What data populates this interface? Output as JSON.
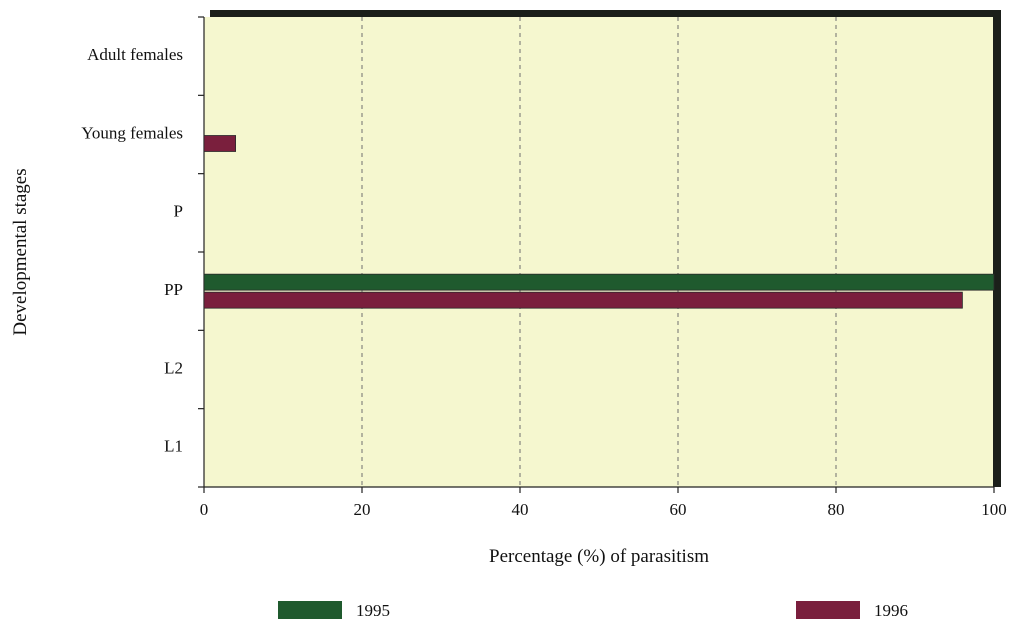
{
  "chart_data": {
    "type": "bar",
    "orientation": "horizontal",
    "title": "",
    "xlabel": "Percentage (%) of parasitism",
    "ylabel": "Developmental stages",
    "categories": [
      "Adult females",
      "Young females",
      "P",
      "PP",
      "L2",
      "L1"
    ],
    "series": [
      {
        "name": "1995",
        "values": [
          0,
          0,
          0,
          100,
          0,
          0
        ],
        "color": "#1f5a2e"
      },
      {
        "name": "1996",
        "values": [
          0,
          4,
          0,
          96,
          0,
          0
        ],
        "color": "#7a1f3d"
      }
    ],
    "xlim": [
      0,
      100
    ],
    "xticks": [
      "0",
      "20",
      "40",
      "60",
      "80",
      "100"
    ],
    "xtick_values": [
      0,
      20,
      40,
      60,
      80,
      100
    ],
    "grid": "vertical dashed",
    "legend_position": "bottom",
    "plot_background": "#f5f7cf"
  }
}
